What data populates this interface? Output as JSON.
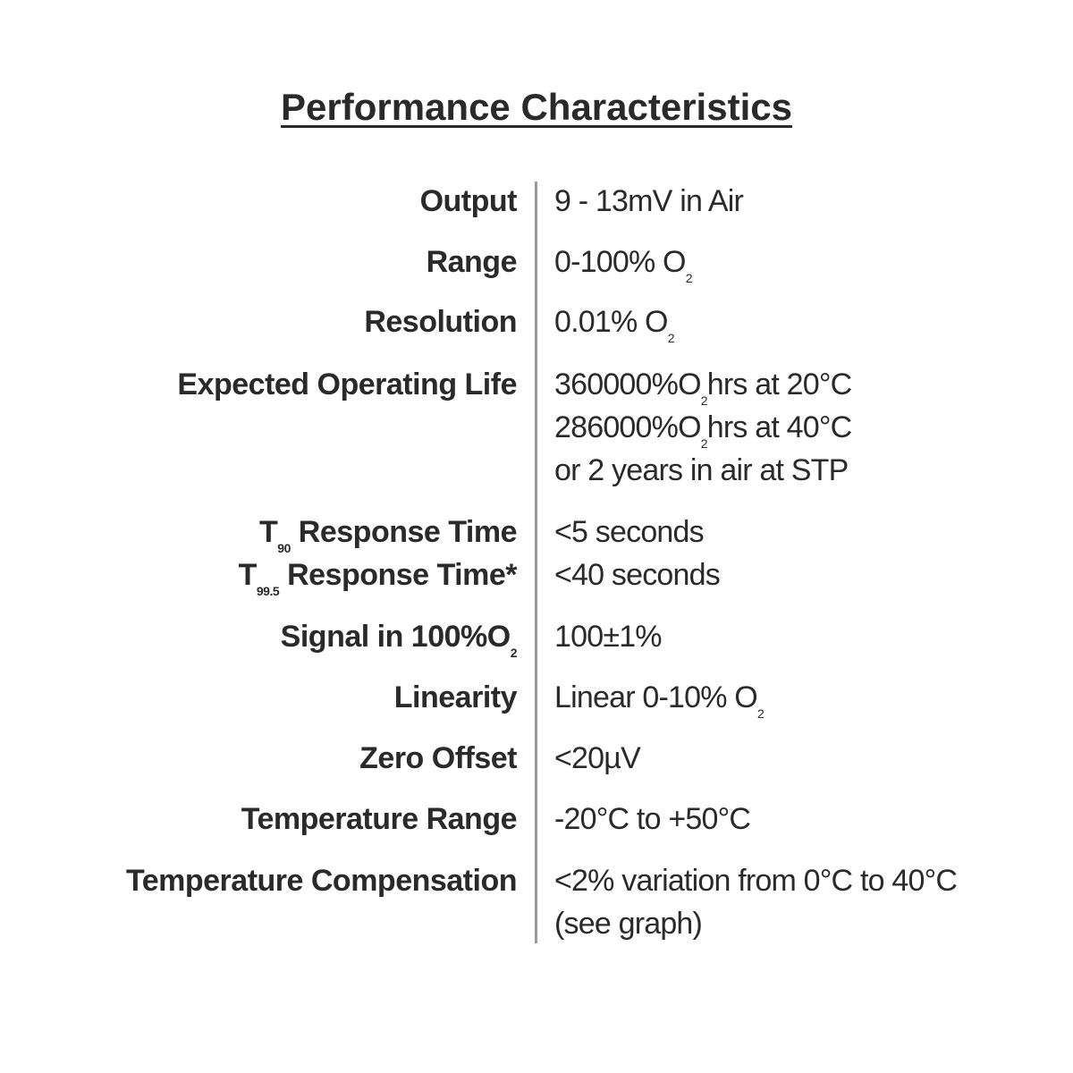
{
  "header": {
    "title": "Performance Characteristics"
  },
  "rows": [
    {
      "label": [
        "Output"
      ],
      "value": [
        [
          "9 - 13mV in Air"
        ]
      ]
    },
    {
      "label": [
        "Range"
      ],
      "value": [
        [
          "0-100% O",
          {
            "sub": "2"
          }
        ]
      ]
    },
    {
      "label": [
        "Resolution"
      ],
      "value": [
        [
          "0.01% O",
          {
            "sub": "2"
          }
        ]
      ]
    },
    {
      "label": [
        "Expected Operating Life"
      ],
      "value": [
        [
          "360000%O",
          {
            "sub": "2"
          },
          "hrs at 20°C"
        ],
        [
          "286000%O",
          {
            "sub": "2"
          },
          "hrs at 40°C"
        ],
        [
          "or 2 years in air at STP"
        ]
      ]
    },
    {
      "label": [
        "T",
        {
          "sub": "90"
        },
        " Response Time"
      ],
      "value": [
        [
          "<5 seconds"
        ]
      ]
    },
    {
      "label": [
        "T",
        {
          "sub": "99.5"
        },
        " Response Time*"
      ],
      "value": [
        [
          "<40 seconds"
        ]
      ]
    },
    {
      "label": [
        "Signal in 100%O",
        {
          "sub": "2"
        }
      ],
      "value": [
        [
          "100±1%"
        ]
      ]
    },
    {
      "label": [
        "Linearity"
      ],
      "value": [
        [
          "Linear 0-10% O",
          {
            "sub": "2"
          }
        ]
      ]
    },
    {
      "label": [
        "Zero Offset"
      ],
      "value": [
        [
          "<20µV"
        ]
      ]
    },
    {
      "label": [
        "Temperature  Range"
      ],
      "value": [
        [
          "-20°C to +50°C"
        ]
      ]
    },
    {
      "label": [
        "Temperature Compensation"
      ],
      "value": [
        [
          "<2% variation from 0°C to 40°C"
        ],
        [
          "(see graph)"
        ]
      ]
    }
  ]
}
